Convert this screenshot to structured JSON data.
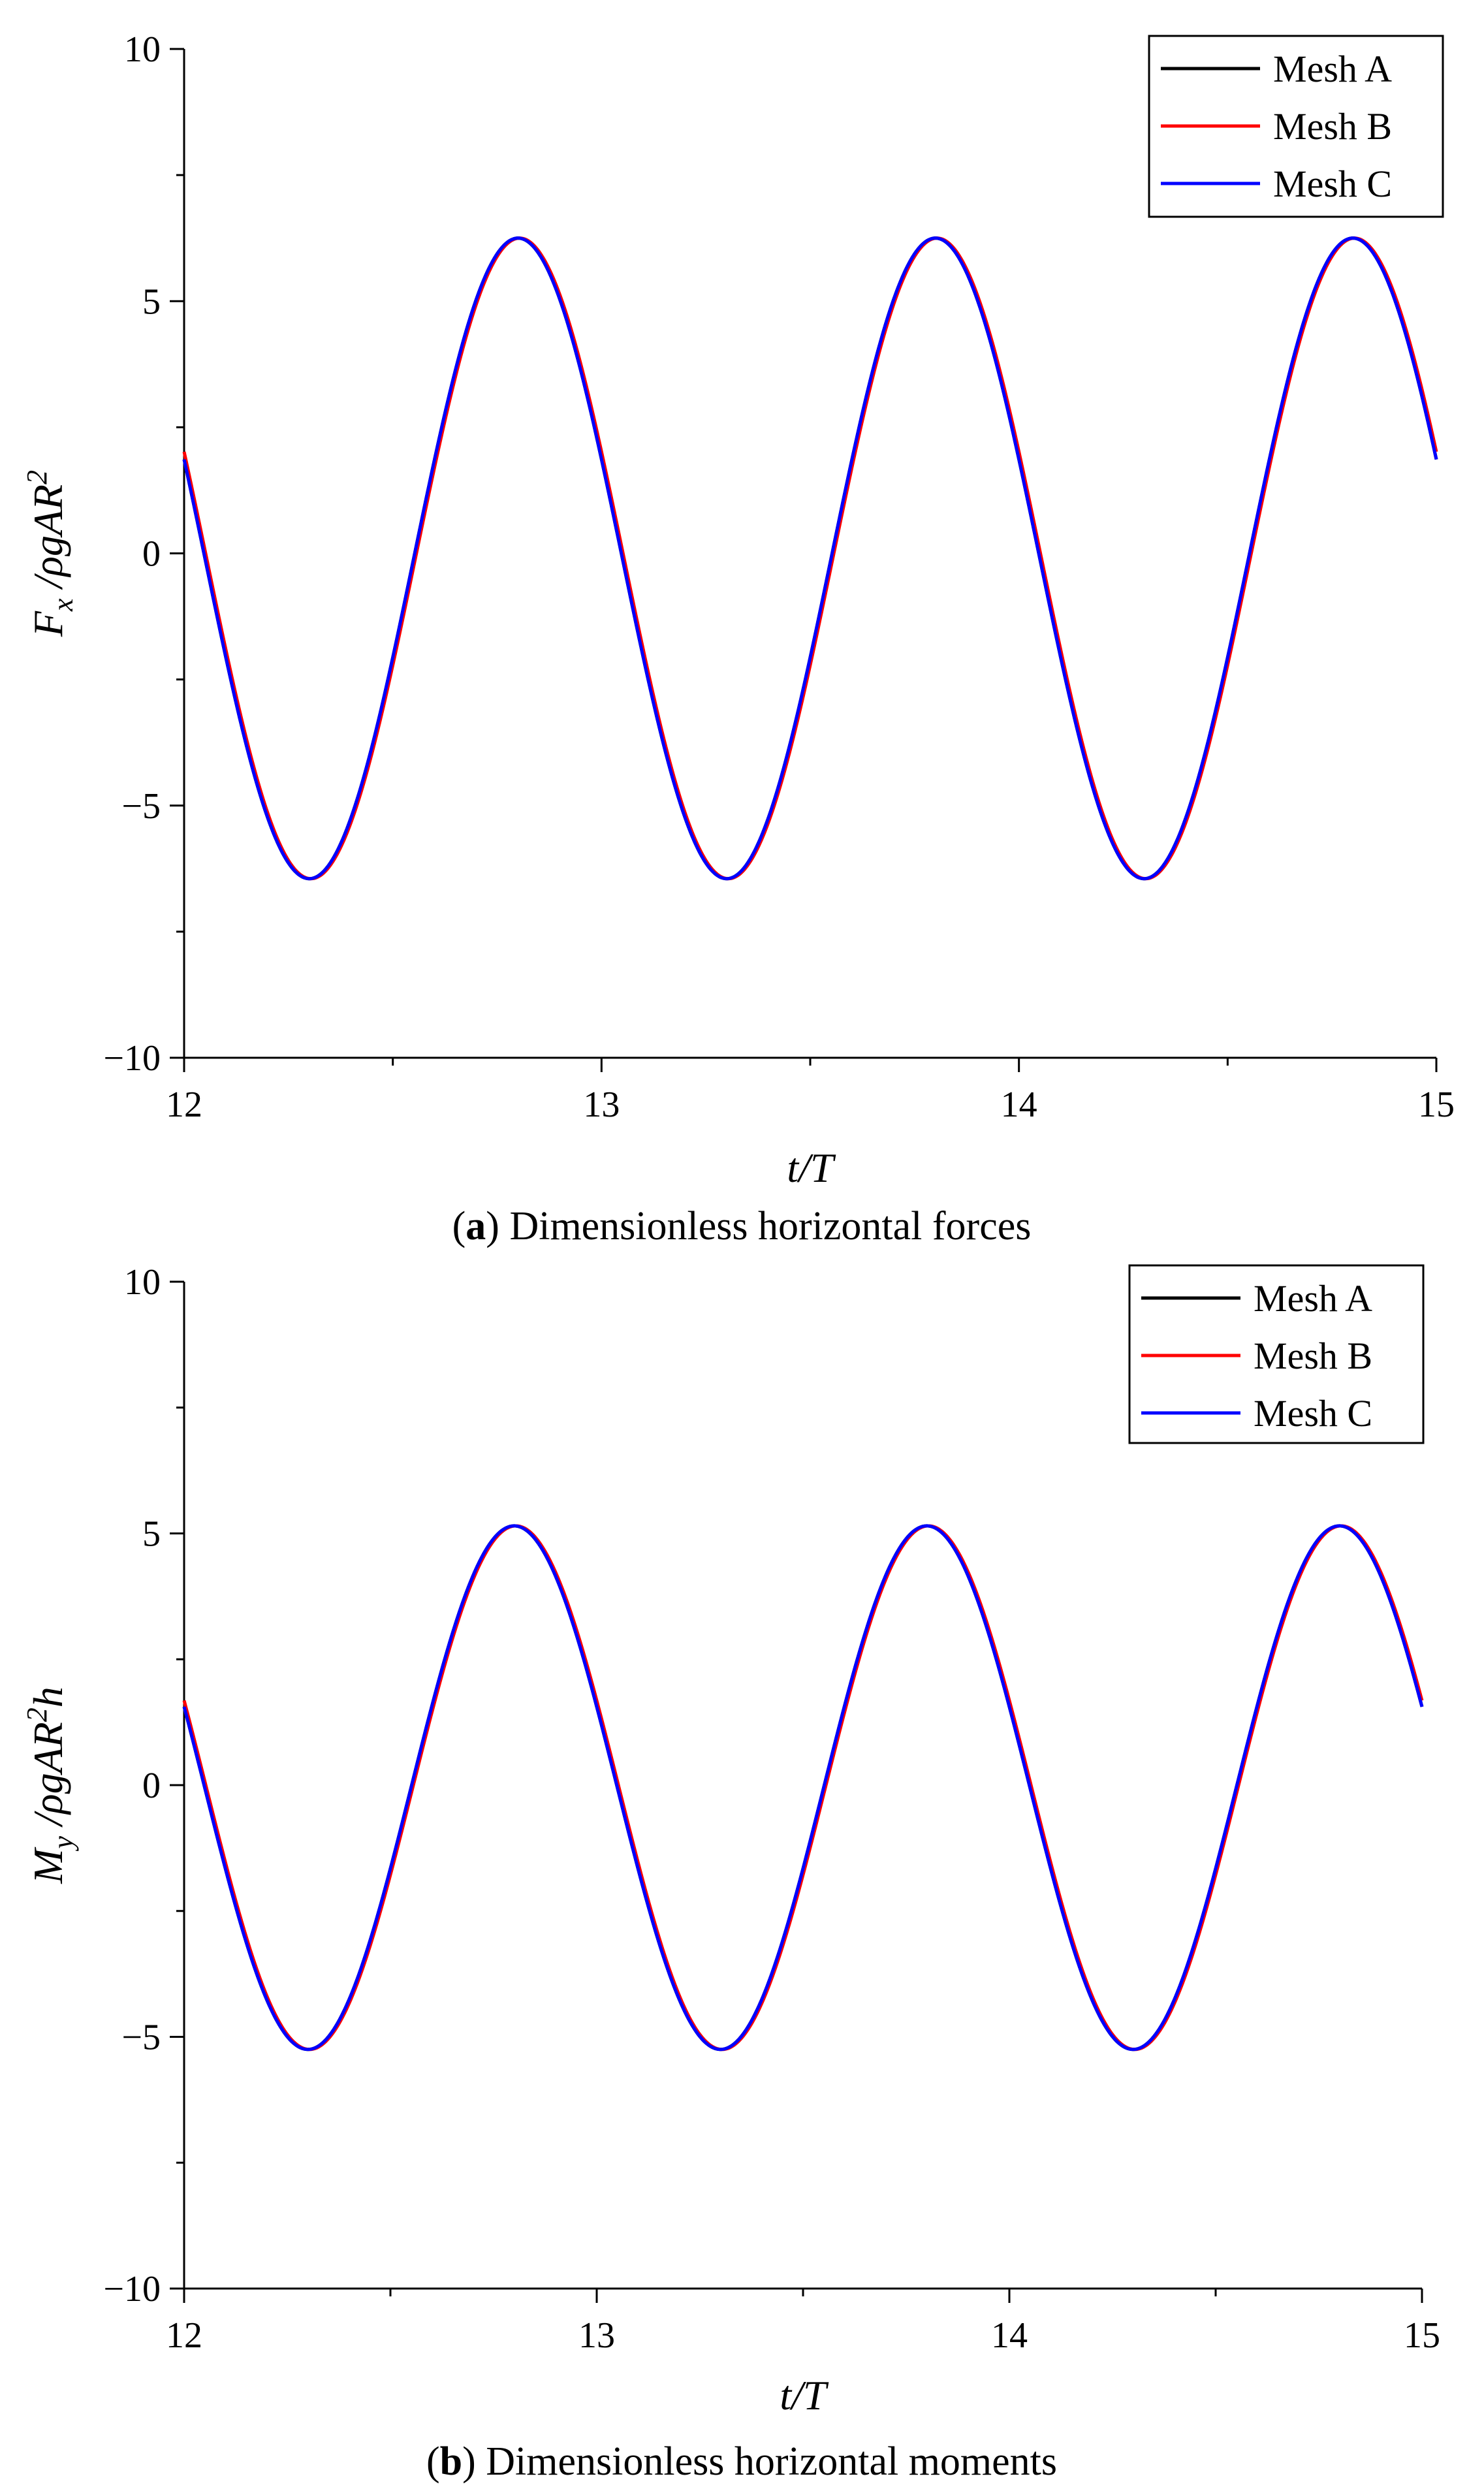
{
  "chart_data": [
    {
      "type": "line",
      "panel": "a",
      "caption_letter": "a",
      "caption_text": " Dimensionless horizontal forces",
      "xlabel": "t/T",
      "ylabel": "F_x /ρgAR²",
      "ylabel_parts": {
        "main": "F",
        "sub": "x",
        "mid": " /ρgAR",
        "sup": "2",
        "tail": ""
      },
      "xlim": [
        12,
        15
      ],
      "ylim": [
        -10,
        10
      ],
      "xticks": [
        12,
        13,
        14,
        15
      ],
      "yticks": [
        -10,
        -5,
        0,
        5,
        10
      ],
      "ytick_labels": [
        "−10",
        "−5",
        "0",
        "5",
        "10"
      ],
      "grid": false,
      "legend_position": "top-right",
      "wave": {
        "amplitude": 6.35,
        "offset": -0.1,
        "peak_t": 12.8,
        "period": 1.0
      },
      "series": [
        {
          "name": "Mesh A",
          "color": "#000000",
          "phase_shift": 0.0
        },
        {
          "name": "Mesh B",
          "color": "#ff0000",
          "phase_shift": 0.004
        },
        {
          "name": "Mesh C",
          "color": "#0000ff",
          "phase_shift": 0.0
        }
      ]
    },
    {
      "type": "line",
      "panel": "b",
      "caption_letter": "b",
      "caption_text": " Dimensionless horizontal moments",
      "xlabel": "t/T",
      "ylabel": "M_y /ρgAR²h",
      "ylabel_parts": {
        "main": "M",
        "sub": "y",
        "mid": " /ρgAR",
        "sup": "2",
        "tail": "h"
      },
      "xlim": [
        12,
        15
      ],
      "ylim": [
        -10,
        10
      ],
      "xticks": [
        12,
        13,
        14,
        15
      ],
      "yticks": [
        -10,
        -5,
        0,
        5,
        10
      ],
      "ytick_labels": [
        "−10",
        "−5",
        "0",
        "5",
        "10"
      ],
      "grid": false,
      "legend_position": "top-right",
      "wave": {
        "amplitude": 5.2,
        "offset": -0.05,
        "peak_t": 12.8,
        "period": 1.0
      },
      "series": [
        {
          "name": "Mesh A",
          "color": "#000000",
          "phase_shift": 0.0
        },
        {
          "name": "Mesh B",
          "color": "#ff0000",
          "phase_shift": 0.004
        },
        {
          "name": "Mesh C",
          "color": "#0000ff",
          "phase_shift": 0.0
        }
      ]
    }
  ]
}
